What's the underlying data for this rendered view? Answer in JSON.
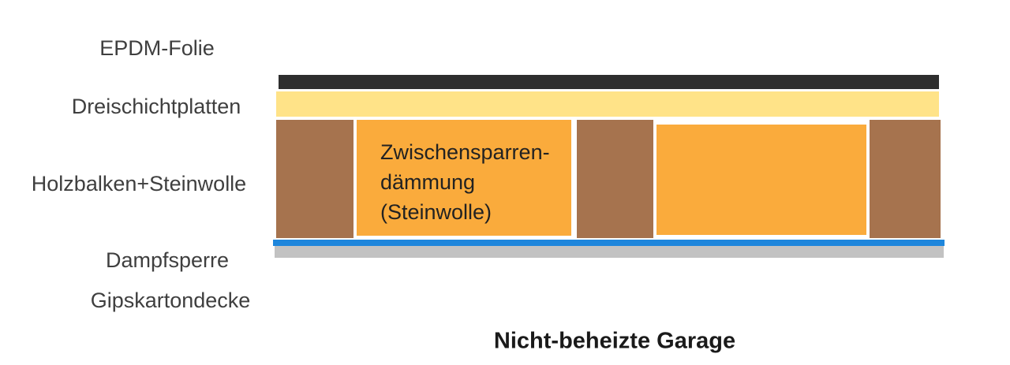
{
  "labels": {
    "epdm_folie": "EPDM-Folie",
    "dreischichtplatten": "Dreischichtplatten",
    "holzbalken_steinwolle": "Holzbalken+Steinwolle",
    "dampfsperre": "Dampfsperre",
    "gipskartondecke": "Gipskartondecke"
  },
  "insulation_block": {
    "line1": "Zwischensparren-",
    "line2": "dämmung",
    "line3": "(Steinwolle)"
  },
  "caption": {
    "text": "Nicht-beheizte Garage"
  },
  "colors": {
    "epdm_membrane": "#2e2e2e",
    "dreischichtplatten": "#ffe388",
    "wood_beam": "#a6734e",
    "insulation": "#faab3c",
    "vapor_barrier": "#1e86dc",
    "plasterboard": "#c2c2c2",
    "label_text": "#3f3f3f",
    "caption_text": "#1a1a1a"
  }
}
